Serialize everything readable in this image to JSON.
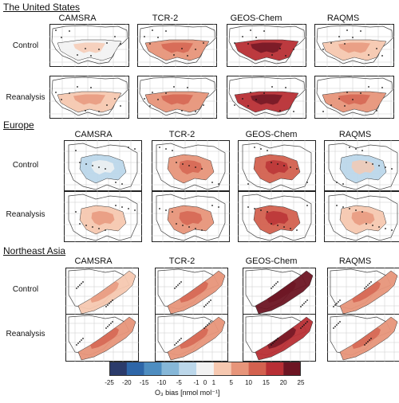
{
  "chart_data": {
    "type": "heatmap",
    "colorbar": {
      "ticks": [
        -25,
        -20,
        -15,
        -10,
        -5,
        -1,
        0,
        1,
        5,
        10,
        15,
        20,
        25
      ],
      "bins": [
        -25,
        -20,
        -15,
        -10,
        -5,
        -1,
        1,
        5,
        10,
        15,
        20,
        25
      ],
      "colors": [
        "#2b3b6b",
        "#2e66a8",
        "#4e8dc0",
        "#86b7d8",
        "#bcd7ea",
        "#f2f2f2",
        "#f6c8b0",
        "#e7957a",
        "#d3614f",
        "#b82f35",
        "#6d1523"
      ],
      "label": "O₃ bias [nmol mol⁻¹]"
    },
    "columns": [
      "CAMSRA",
      "TCR-2",
      "GEOS-Chem",
      "RAQMS"
    ],
    "regions": [
      {
        "title": "The United States",
        "rows": [
          {
            "label": "Control",
            "approx_bias": [
              -1,
              5,
              15,
              1
            ]
          },
          {
            "label": "Reanalysis",
            "approx_bias": [
              3,
              8,
              15,
              5
            ]
          }
        ]
      },
      {
        "title": "Europe",
        "rows": [
          {
            "label": "Control",
            "approx_bias": [
              -5,
              5,
              12,
              -3
            ]
          },
          {
            "label": "Reanalysis",
            "approx_bias": [
              1,
              8,
              12,
              3
            ]
          }
        ]
      },
      {
        "title": "Northeast Asia",
        "rows": [
          {
            "label": "Control",
            "approx_bias": [
              3,
              8,
              20,
              5
            ]
          },
          {
            "label": "Reanalysis",
            "approx_bias": [
              5,
              8,
              18,
              5
            ]
          }
        ]
      }
    ]
  }
}
